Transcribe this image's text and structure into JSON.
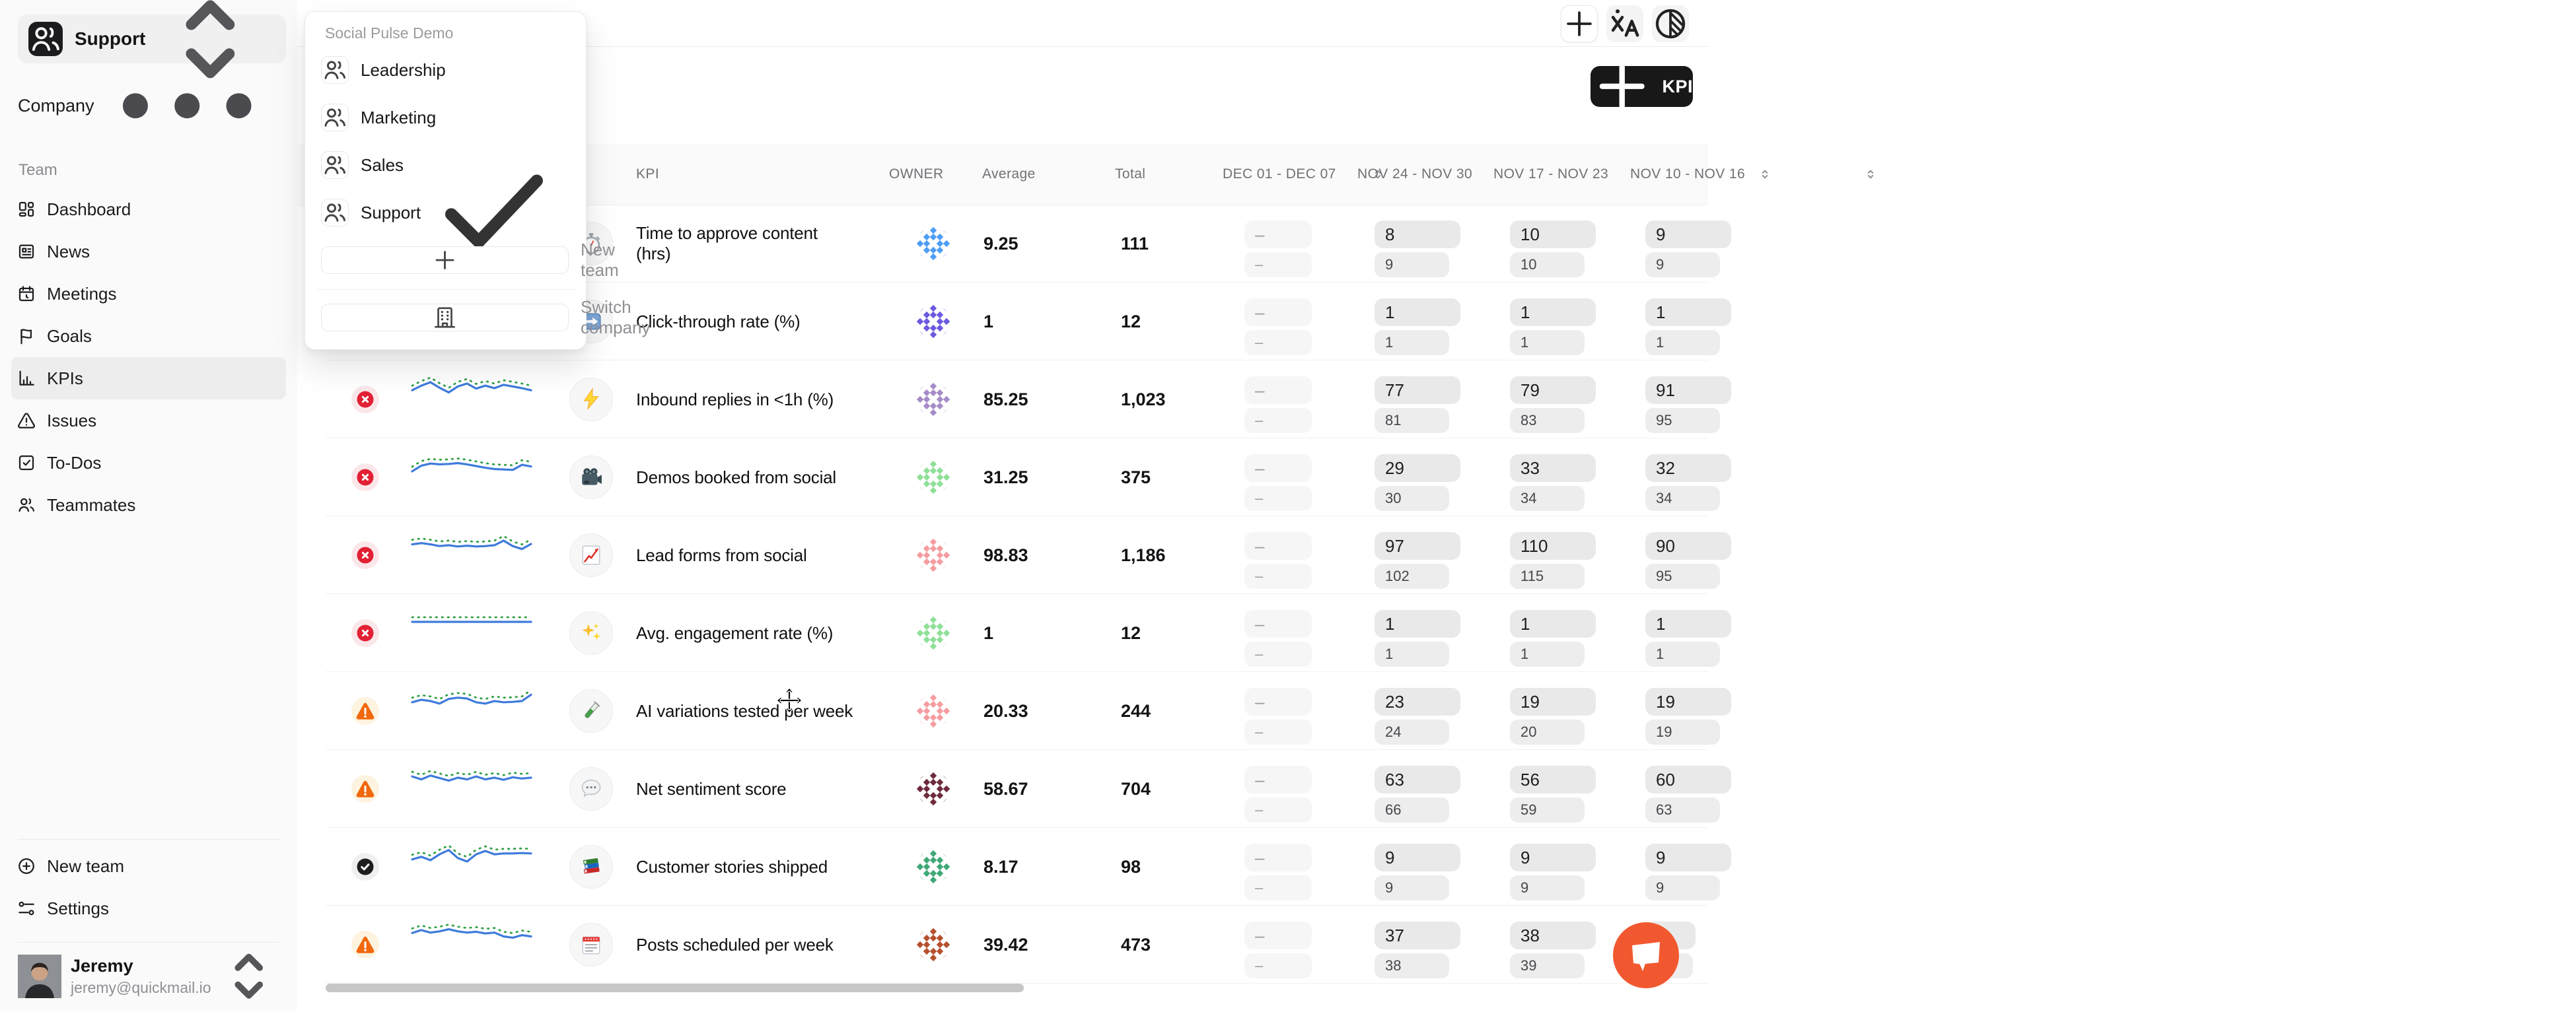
{
  "sidebar": {
    "workspace_name": "Support",
    "company_label": "Company",
    "team_label": "Team",
    "nav_items": [
      {
        "label": "Dashboard",
        "icon": "dashboard-icon",
        "active": false
      },
      {
        "label": "News",
        "icon": "news-icon",
        "active": false
      },
      {
        "label": "Meetings",
        "icon": "meetings-icon",
        "active": false
      },
      {
        "label": "Goals",
        "icon": "flag-icon",
        "active": false
      },
      {
        "label": "KPIs",
        "icon": "bar-chart-icon",
        "active": true
      },
      {
        "label": "Issues",
        "icon": "warning-triangle-icon",
        "active": false
      },
      {
        "label": "To-Dos",
        "icon": "checkbox-icon",
        "active": false
      },
      {
        "label": "Teammates",
        "icon": "users-icon",
        "active": false
      }
    ],
    "footer_items": [
      {
        "label": "New team",
        "icon": "plus-circle-icon"
      },
      {
        "label": "Settings",
        "icon": "sliders-icon"
      }
    ],
    "user": {
      "name": "Jeremy",
      "email": "jeremy@quickmail.io"
    }
  },
  "team_menu": {
    "header": "Social Pulse Demo",
    "items": [
      {
        "label": "Leadership",
        "checked": false
      },
      {
        "label": "Marketing",
        "checked": false
      },
      {
        "label": "Sales",
        "checked": false
      },
      {
        "label": "Support",
        "checked": true
      }
    ],
    "new_team_label": "New team",
    "switch_company_label": "Switch company"
  },
  "topbar": {
    "kpi_button_label": "KPI",
    "accent_black": "#181818"
  },
  "table": {
    "columns": {
      "kpi": "KPI",
      "owner": "OWNER",
      "average": "Average",
      "total": "Total",
      "weeks": [
        "DEC 01 - DEC 07",
        "NOV 24 - NOV 30",
        "NOV 17 - NOV 23",
        "NOV 10 - NOV 16"
      ]
    },
    "rows": [
      {
        "name": "Time to approve content (hrs)",
        "wrap": true,
        "icon": "stopwatch-icon",
        "status": null,
        "avatar_color": "#4d9ef6",
        "average": "9.25",
        "total": "111",
        "weeks": [
          [
            "–",
            "–"
          ],
          [
            "8",
            "9"
          ],
          [
            "10",
            "10"
          ],
          [
            "9",
            "9"
          ]
        ],
        "spark": null
      },
      {
        "name": "Click-through rate (%)",
        "icon": "arrow-right-icon",
        "status": null,
        "avatar_color": "#6a5ae0",
        "average": "1",
        "total": "12",
        "weeks": [
          [
            "–",
            "–"
          ],
          [
            "1",
            "1"
          ],
          [
            "1",
            "1"
          ],
          [
            "1",
            "1"
          ]
        ],
        "spark": null
      },
      {
        "name": "Inbound replies in <1h (%)",
        "icon": "lightning-icon",
        "status": "off-track",
        "avatar_color": "#a68bc9",
        "average": "85.25",
        "total": "1,023",
        "weeks": [
          [
            "–",
            "–"
          ],
          [
            "77",
            "81"
          ],
          [
            "79",
            "83"
          ],
          [
            "91",
            "95"
          ]
        ],
        "spark": [
          40,
          62,
          78,
          52,
          30,
          58,
          72,
          48,
          62,
          50,
          66,
          58,
          50,
          40
        ]
      },
      {
        "name": "Demos booked from social",
        "icon": "movie-camera-icon",
        "status": "off-track",
        "avatar_color": "#8fe098",
        "average": "31.25",
        "total": "375",
        "weeks": [
          [
            "–",
            "–"
          ],
          [
            "29",
            "30"
          ],
          [
            "33",
            "34"
          ],
          [
            "32",
            "34"
          ]
        ],
        "spark": [
          25,
          52,
          62,
          58,
          60,
          64,
          58,
          50,
          42,
          36,
          34,
          32,
          56,
          48
        ]
      },
      {
        "name": "Lead forms from social",
        "icon": "chart-increasing-icon",
        "status": "off-track",
        "avatar_color": "#f59da1",
        "average": "98.83",
        "total": "1,186",
        "weeks": [
          [
            "–",
            "–"
          ],
          [
            "97",
            "102"
          ],
          [
            "110",
            "115"
          ],
          [
            "90",
            "95"
          ]
        ],
        "spark": [
          48,
          54,
          48,
          40,
          44,
          38,
          42,
          38,
          40,
          44,
          66,
          40,
          26,
          50
        ]
      },
      {
        "name": "Avg. engagement rate (%)",
        "icon": "sparkles-icon",
        "status": "off-track",
        "avatar_color": "#8fe098",
        "average": "1",
        "total": "12",
        "weeks": [
          [
            "–",
            "–"
          ],
          [
            "1",
            "1"
          ],
          [
            "1",
            "1"
          ],
          [
            "1",
            "1"
          ]
        ],
        "spark": [
          50,
          50,
          50,
          50,
          50,
          50,
          50,
          50,
          50,
          50,
          50,
          50,
          50,
          50
        ]
      },
      {
        "name": "AI variations tested per week",
        "icon": "test-tube-icon",
        "status": "at-risk",
        "avatar_color": "#f59da1",
        "average": "20.33",
        "total": "244",
        "weeks": [
          [
            "–",
            "–"
          ],
          [
            "23",
            "24"
          ],
          [
            "19",
            "20"
          ],
          [
            "19",
            "19"
          ]
        ],
        "spark": [
          38,
          50,
          44,
          32,
          54,
          60,
          56,
          38,
          32,
          44,
          38,
          40,
          44,
          74
        ]
      },
      {
        "name": "Net sentiment score",
        "icon": "speech-balloon-icon",
        "status": "at-risk",
        "avatar_color": "#6e2b3c",
        "average": "58.67",
        "total": "704",
        "weeks": [
          [
            "–",
            "–"
          ],
          [
            "63",
            "66"
          ],
          [
            "56",
            "59"
          ],
          [
            "60",
            "63"
          ]
        ],
        "spark": [
          56,
          42,
          60,
          48,
          36,
          50,
          42,
          56,
          42,
          50,
          40,
          52,
          46,
          50
        ]
      },
      {
        "name": "Customer stories shipped",
        "icon": "books-icon",
        "status": "complete",
        "avatar_color": "#3fa877",
        "average": "8.17",
        "total": "98",
        "weeks": [
          [
            "–",
            "–"
          ],
          [
            "9",
            "9"
          ],
          [
            "9",
            "9"
          ],
          [
            "9",
            "9"
          ]
        ],
        "spark": [
          32,
          44,
          28,
          56,
          76,
          38,
          22,
          56,
          72,
          56,
          60,
          60,
          62,
          60
        ]
      },
      {
        "name": "Posts scheduled per week",
        "icon": "calendar-icon",
        "status": "at-risk",
        "avatar_color": "#b5502d",
        "average": "39.42",
        "total": "473",
        "weeks": [
          [
            "–",
            "–"
          ],
          [
            "37",
            "38"
          ],
          [
            "38",
            "39"
          ],
          [
            null,
            null
          ]
        ],
        "spark": [
          52,
          66,
          54,
          60,
          70,
          60,
          54,
          58,
          50,
          54,
          36,
          30,
          42,
          36
        ]
      }
    ],
    "status_colors": {
      "off-track": "#e22134",
      "at-risk": "#f2680c",
      "complete": "#1d1d1f"
    },
    "sparkline_colors": {
      "actual": "#3e7bdb",
      "goal": "#2f9e44"
    }
  },
  "chat": {
    "color": "#f2582f"
  }
}
